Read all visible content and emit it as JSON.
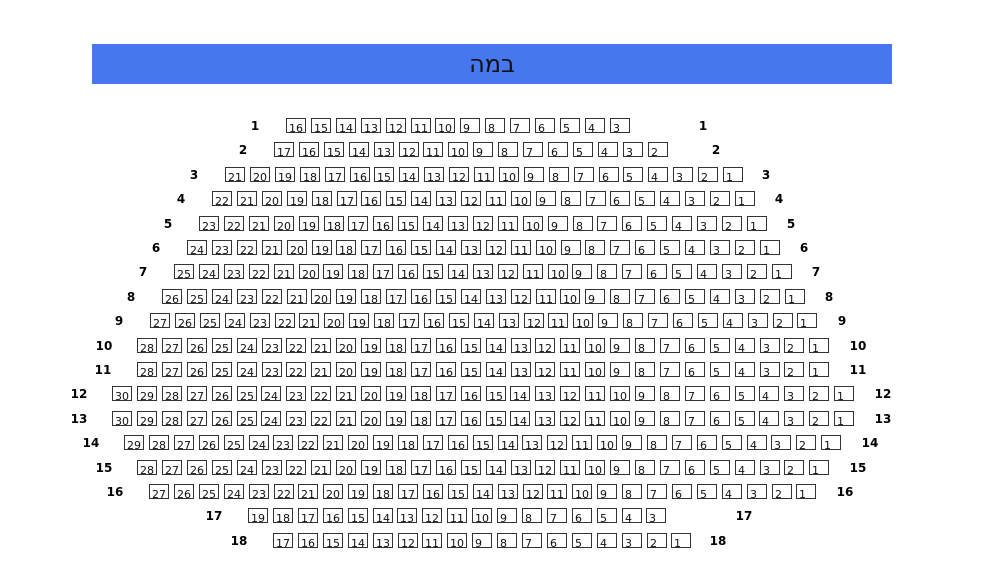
{
  "stage": {
    "label": "במה",
    "color": "#4677ee"
  },
  "rows": [
    {
      "label": "1",
      "from": 16,
      "to": 3
    },
    {
      "label": "2",
      "from": 17,
      "to": 2
    },
    {
      "label": "3",
      "from": 21,
      "to": 1
    },
    {
      "label": "4",
      "from": 22,
      "to": 1
    },
    {
      "label": "5",
      "from": 23,
      "to": 1
    },
    {
      "label": "6",
      "from": 24,
      "to": 1
    },
    {
      "label": "7",
      "from": 25,
      "to": 1
    },
    {
      "label": "8",
      "from": 26,
      "to": 1
    },
    {
      "label": "9",
      "from": 27,
      "to": 1
    },
    {
      "label": "10",
      "from": 28,
      "to": 1
    },
    {
      "label": "11",
      "from": 28,
      "to": 1
    },
    {
      "label": "12",
      "from": 30,
      "to": 1
    },
    {
      "label": "13",
      "from": 30,
      "to": 1
    },
    {
      "label": "14",
      "from": 29,
      "to": 1
    },
    {
      "label": "15",
      "from": 28,
      "to": 1
    },
    {
      "label": "16",
      "from": 27,
      "to": 1
    },
    {
      "label": "17",
      "from": 19,
      "to": 3
    },
    {
      "label": "18",
      "from": 17,
      "to": 1
    }
  ]
}
